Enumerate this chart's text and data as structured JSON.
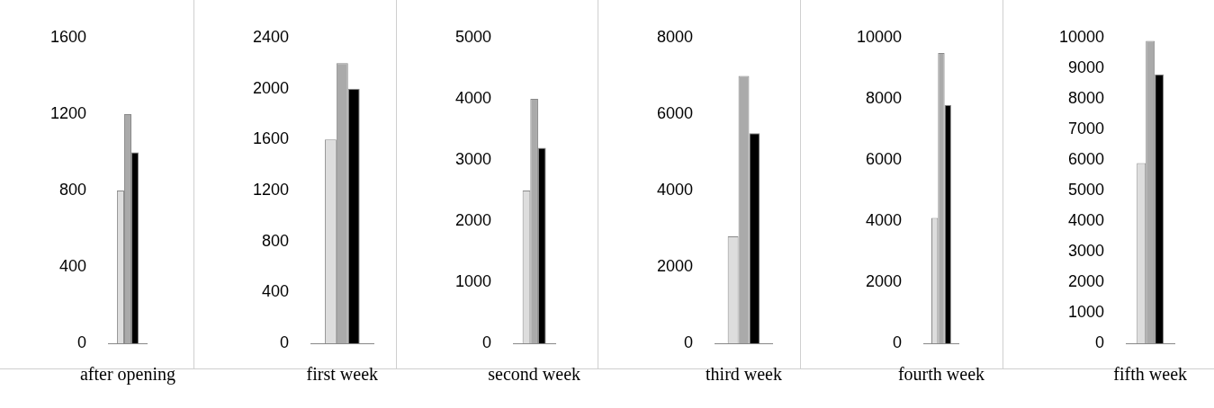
{
  "chart_data": [
    {
      "type": "bar",
      "categories": [
        "after opening"
      ],
      "ylim": [
        0,
        1600
      ],
      "yticks": [
        0,
        400,
        800,
        1200,
        1600
      ],
      "series": [
        {
          "color": "#dddddd",
          "values": [
            800
          ]
        },
        {
          "color": "#aaaaaa",
          "values": [
            1200
          ]
        },
        {
          "color": "#000000",
          "values": [
            1000
          ]
        }
      ]
    },
    {
      "type": "bar",
      "categories": [
        "first week"
      ],
      "ylim": [
        0,
        2400
      ],
      "yticks": [
        0,
        400,
        800,
        1200,
        1600,
        2000,
        2400
      ],
      "series": [
        {
          "color": "#dddddd",
          "values": [
            1600
          ]
        },
        {
          "color": "#aaaaaa",
          "values": [
            2200
          ]
        },
        {
          "color": "#000000",
          "values": [
            2000
          ]
        }
      ]
    },
    {
      "type": "bar",
      "categories": [
        "second week"
      ],
      "ylim": [
        0,
        5000
      ],
      "yticks": [
        0,
        1000,
        2000,
        3000,
        4000,
        5000
      ],
      "series": [
        {
          "color": "#dddddd",
          "values": [
            2500
          ]
        },
        {
          "color": "#aaaaaa",
          "values": [
            4000
          ]
        },
        {
          "color": "#000000",
          "values": [
            3200
          ]
        }
      ]
    },
    {
      "type": "bar",
      "categories": [
        "third week"
      ],
      "ylim": [
        0,
        8000
      ],
      "yticks": [
        0,
        2000,
        4000,
        6000,
        8000
      ],
      "series": [
        {
          "color": "#dddddd",
          "values": [
            2800
          ]
        },
        {
          "color": "#aaaaaa",
          "values": [
            7000
          ]
        },
        {
          "color": "#000000",
          "values": [
            5500
          ]
        }
      ]
    },
    {
      "type": "bar",
      "categories": [
        "fourth week"
      ],
      "ylim": [
        0,
        10000
      ],
      "yticks": [
        0,
        2000,
        4000,
        6000,
        8000,
        10000
      ],
      "series": [
        {
          "color": "#dddddd",
          "values": [
            4100
          ]
        },
        {
          "color": "#aaaaaa",
          "values": [
            9500
          ]
        },
        {
          "color": "#000000",
          "values": [
            7800
          ]
        }
      ]
    },
    {
      "type": "bar",
      "categories": [
        "fifth week"
      ],
      "ylim": [
        0,
        10000
      ],
      "yticks": [
        0,
        1000,
        2000,
        3000,
        4000,
        5000,
        6000,
        7000,
        8000,
        9000,
        10000
      ],
      "series": [
        {
          "color": "#dddddd",
          "values": [
            5900
          ]
        },
        {
          "color": "#aaaaaa",
          "values": [
            9900
          ]
        },
        {
          "color": "#000000",
          "values": [
            8800
          ]
        }
      ]
    }
  ]
}
